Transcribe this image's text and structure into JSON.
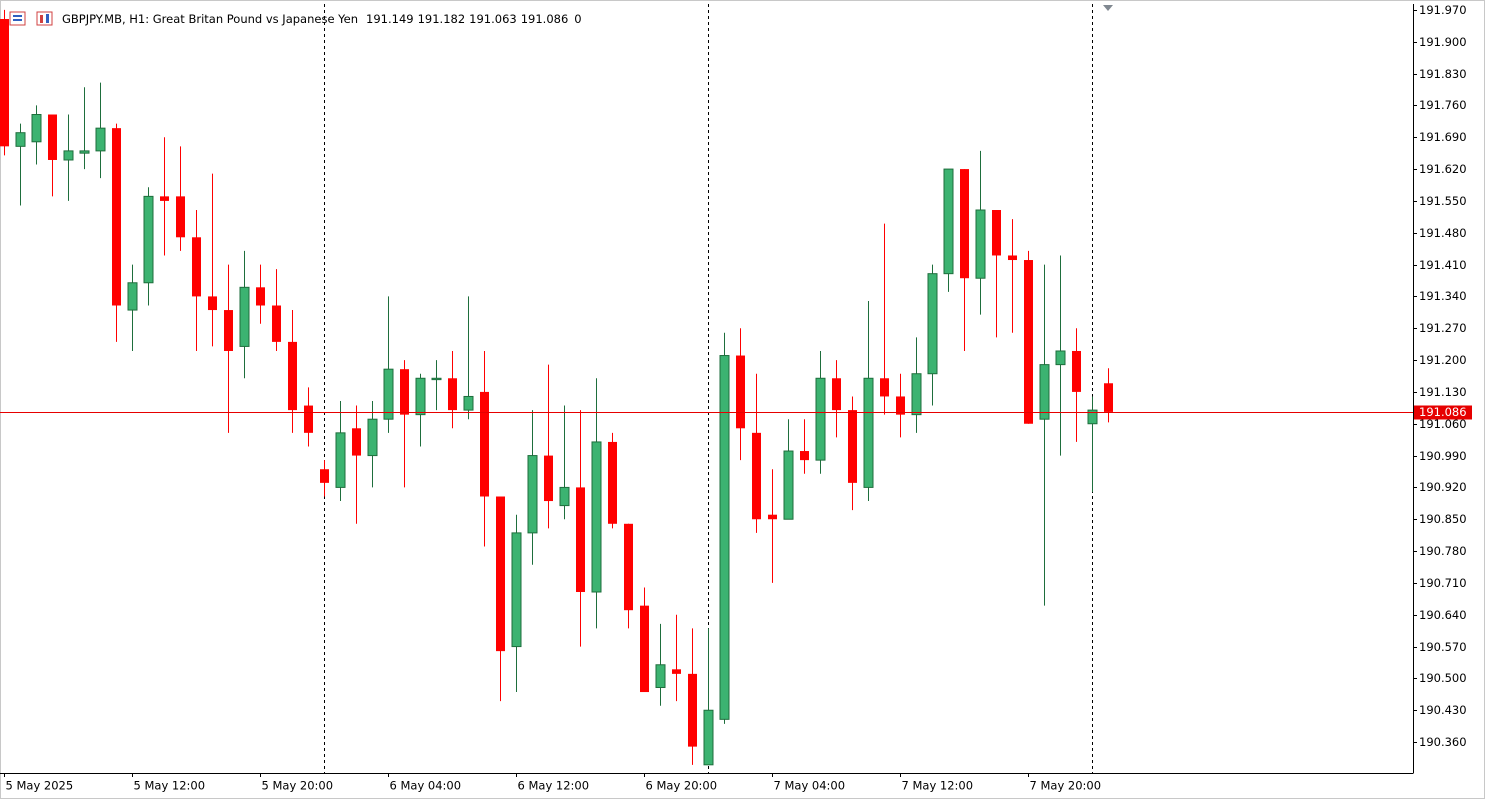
{
  "chart_data": {
    "type": "candlestick",
    "title": "GBPJPY.MB, H1:  Great Britan Pound vs Japanese Yen",
    "volume": 0,
    "open": [
      191.95,
      191.67,
      191.68,
      191.74,
      191.64,
      191.655,
      191.66,
      191.71,
      191.31,
      191.37,
      191.56,
      191.56,
      191.47,
      191.34,
      191.31,
      191.23,
      191.36,
      191.32,
      191.24,
      191.1,
      190.96,
      190.92,
      191.05,
      190.99,
      191.07,
      191.18,
      191.08,
      191.157,
      191.16,
      191.09,
      191.13,
      190.9,
      190.57,
      190.82,
      190.99,
      190.88,
      190.92,
      190.69,
      191.02,
      190.84,
      190.66,
      190.48,
      190.52,
      190.51,
      190.31,
      190.41,
      191.21,
      191.04,
      190.86,
      190.85,
      191.0,
      190.98,
      191.16,
      191.09,
      190.92,
      191.16,
      191.12,
      191.08,
      191.17,
      191.39,
      191.62,
      191.38,
      191.53,
      191.43,
      191.42,
      191.07,
      191.19,
      191.22,
      191.06,
      191.149
    ],
    "high": [
      191.97,
      191.72,
      191.76,
      191.74,
      191.74,
      191.8,
      191.81,
      191.72,
      191.41,
      191.58,
      191.69,
      191.67,
      191.53,
      191.61,
      191.41,
      191.44,
      191.41,
      191.4,
      191.31,
      191.14,
      190.98,
      191.11,
      191.1,
      191.11,
      191.34,
      191.2,
      191.17,
      191.2,
      191.22,
      191.34,
      191.22,
      190.9,
      190.86,
      191.09,
      191.19,
      191.1,
      191.09,
      191.16,
      191.04,
      190.84,
      190.7,
      190.62,
      190.64,
      190.61,
      190.61,
      191.26,
      191.27,
      191.17,
      190.96,
      191.07,
      191.07,
      191.22,
      191.2,
      191.12,
      191.33,
      191.5,
      191.17,
      191.25,
      191.41,
      191.62,
      191.62,
      191.66,
      191.53,
      191.51,
      191.44,
      191.41,
      191.43,
      191.27,
      191.12,
      191.182
    ],
    "low": [
      191.65,
      191.54,
      191.63,
      191.56,
      191.55,
      191.62,
      191.6,
      191.24,
      191.22,
      191.32,
      191.43,
      191.44,
      191.22,
      191.23,
      191.04,
      191.16,
      191.28,
      191.22,
      191.04,
      191.01,
      190.9,
      190.89,
      190.84,
      190.92,
      191.04,
      190.92,
      191.01,
      191.09,
      191.05,
      191.07,
      190.79,
      190.45,
      190.47,
      190.75,
      190.83,
      190.85,
      190.57,
      190.61,
      190.83,
      190.61,
      190.47,
      190.44,
      190.45,
      190.31,
      190.31,
      190.4,
      190.98,
      190.82,
      190.71,
      190.85,
      190.95,
      190.95,
      191.03,
      190.87,
      190.89,
      191.08,
      191.03,
      191.04,
      191.1,
      191.35,
      191.22,
      191.3,
      191.25,
      191.26,
      191.06,
      190.66,
      190.99,
      191.02,
      190.91,
      191.063
    ],
    "close": [
      191.67,
      191.7,
      191.74,
      191.64,
      191.66,
      191.66,
      191.71,
      191.32,
      191.37,
      191.56,
      191.55,
      191.47,
      191.34,
      191.31,
      191.22,
      191.36,
      191.32,
      191.24,
      191.09,
      191.04,
      190.93,
      191.04,
      190.99,
      191.07,
      191.18,
      191.08,
      191.16,
      191.16,
      191.09,
      191.12,
      190.9,
      190.56,
      190.82,
      190.99,
      190.89,
      190.92,
      190.69,
      191.02,
      190.84,
      190.65,
      190.47,
      190.53,
      190.51,
      190.35,
      190.43,
      191.21,
      191.05,
      190.85,
      190.85,
      191.0,
      190.98,
      191.16,
      191.09,
      190.93,
      191.16,
      191.12,
      191.08,
      191.17,
      191.39,
      191.62,
      191.38,
      191.53,
      191.43,
      191.42,
      191.06,
      191.19,
      191.22,
      191.13,
      191.09,
      191.086
    ],
    "up_color": "#3cb371",
    "down_color": "#ff0000",
    "current_price": {
      "value": 191.086,
      "label": "191.086"
    },
    "current_price_color": "#e60000",
    "separator_candles": [
      20,
      44,
      68
    ],
    "xticks": [
      "5 May 2025",
      "5 May 12:00",
      "5 May 20:00",
      "6 May 04:00",
      "6 May 12:00",
      "6 May 20:00",
      "7 May 04:00",
      "7 May 12:00",
      "7 May 20:00"
    ],
    "ylim": [
      190.292,
      191.983
    ],
    "yticks": [
      {
        "value": 191.97,
        "label": "191.970"
      },
      {
        "value": 191.9,
        "label": "191.900"
      },
      {
        "value": 191.83,
        "label": "191.830"
      },
      {
        "value": 191.76,
        "label": "191.760"
      },
      {
        "value": 191.69,
        "label": "191.690"
      },
      {
        "value": 191.62,
        "label": "191.620"
      },
      {
        "value": 191.55,
        "label": "191.550"
      },
      {
        "value": 191.48,
        "label": "191.480"
      },
      {
        "value": 191.41,
        "label": "191.410"
      },
      {
        "value": 191.34,
        "label": "191.340"
      },
      {
        "value": 191.27,
        "label": "191.270"
      },
      {
        "value": 191.2,
        "label": "191.200"
      },
      {
        "value": 191.13,
        "label": "191.130"
      },
      {
        "value": 191.06,
        "label": "191.060"
      },
      {
        "value": 190.99,
        "label": "190.990"
      },
      {
        "value": 190.92,
        "label": "190.920"
      },
      {
        "value": 190.85,
        "label": "190.850"
      },
      {
        "value": 190.78,
        "label": "190.780"
      },
      {
        "value": 190.71,
        "label": "190.710"
      },
      {
        "value": 190.64,
        "label": "190.640"
      },
      {
        "value": 190.57,
        "label": "190.570"
      },
      {
        "value": 190.5,
        "label": "190.500"
      },
      {
        "value": 190.43,
        "label": "190.430"
      },
      {
        "value": 190.36,
        "label": "190.360"
      }
    ],
    "grid": false
  }
}
